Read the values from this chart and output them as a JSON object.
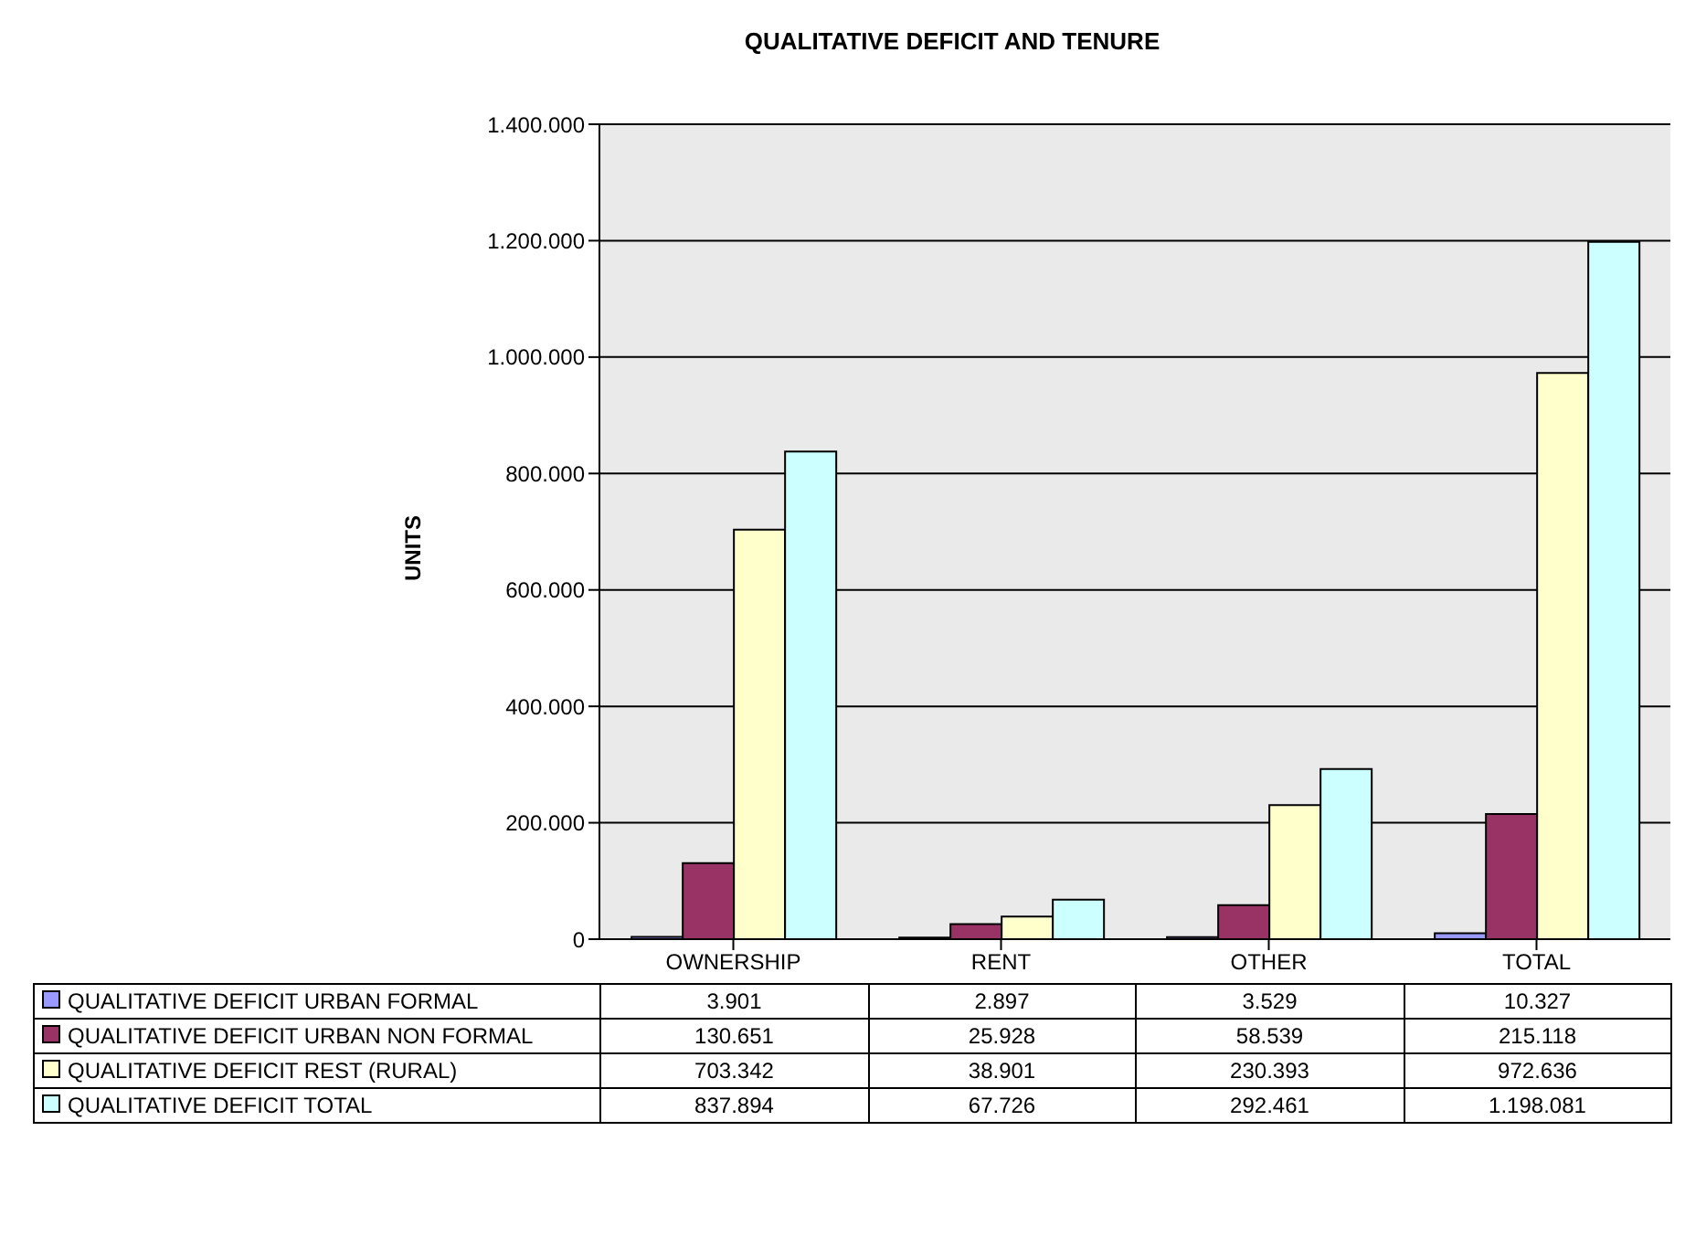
{
  "chart_data": {
    "type": "bar",
    "title": "QUALITATIVE DEFICIT AND TENURE",
    "ylabel": "UNITS",
    "categories": [
      "OWNERSHIP",
      "RENT",
      "OTHER",
      "TOTAL"
    ],
    "series": [
      {
        "name": "QUALITATIVE DEFICIT URBAN FORMAL",
        "color": "#9999ff",
        "values": [
          3901,
          2897,
          3529,
          10327
        ],
        "value_labels": [
          "3.901",
          "2.897",
          "3.529",
          "10.327"
        ]
      },
      {
        "name": "QUALITATIVE DEFICIT URBAN NON FORMAL",
        "color": "#993366",
        "values": [
          130651,
          25928,
          58539,
          215118
        ],
        "value_labels": [
          "130.651",
          "25.928",
          "58.539",
          "215.118"
        ]
      },
      {
        "name": "QUALITATIVE DEFICIT REST (RURAL)",
        "color": "#ffffcc",
        "values": [
          703342,
          38901,
          230393,
          972636
        ],
        "value_labels": [
          "703.342",
          "38.901",
          "230.393",
          "972.636"
        ]
      },
      {
        "name": "QUALITATIVE DEFICIT TOTAL",
        "color": "#ccffff",
        "values": [
          837894,
          67726,
          292461,
          1198081
        ],
        "value_labels": [
          "837.894",
          "67.726",
          "292.461",
          "1.198.081"
        ]
      }
    ],
    "ylim": [
      0,
      1400000
    ],
    "yticks": [
      {
        "value": 0,
        "label": "0"
      },
      {
        "value": 200000,
        "label": "200.000"
      },
      {
        "value": 400000,
        "label": "400.000"
      },
      {
        "value": 600000,
        "label": "600.000"
      },
      {
        "value": 800000,
        "label": "800.000"
      },
      {
        "value": 1000000,
        "label": "1.000.000"
      },
      {
        "value": 1200000,
        "label": "1.200.000"
      },
      {
        "value": 1400000,
        "label": "1.400.000"
      }
    ],
    "grid": "y",
    "legend": "bottom"
  }
}
